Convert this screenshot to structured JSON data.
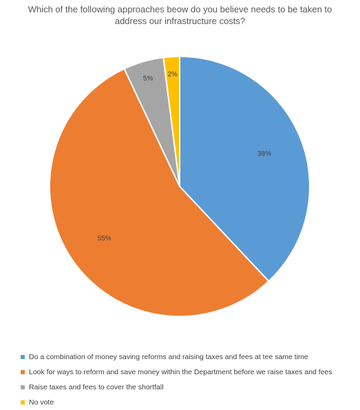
{
  "chart_data": {
    "type": "pie",
    "title": "Which of the following approaches beow do you believe needs to be taken to address our infrastructure costs?",
    "slices": [
      {
        "label": "Do a combination of money saving reforms and raising taxes and fees at tee same time",
        "value": 38,
        "data_label": "38%",
        "color": "#5B9BD5"
      },
      {
        "label": "Look for ways to reform and save money within the Department before we raise taxes and fees",
        "value": 55,
        "data_label": "55%",
        "color": "#ED7D31"
      },
      {
        "label": "Raise taxes and fees to cover the shortfall",
        "value": 5,
        "data_label": "5%",
        "color": "#A5A5A5"
      },
      {
        "label": "No vote",
        "value": 2,
        "data_label": "2%",
        "color": "#FFC000"
      }
    ],
    "legend_position": "bottom"
  }
}
